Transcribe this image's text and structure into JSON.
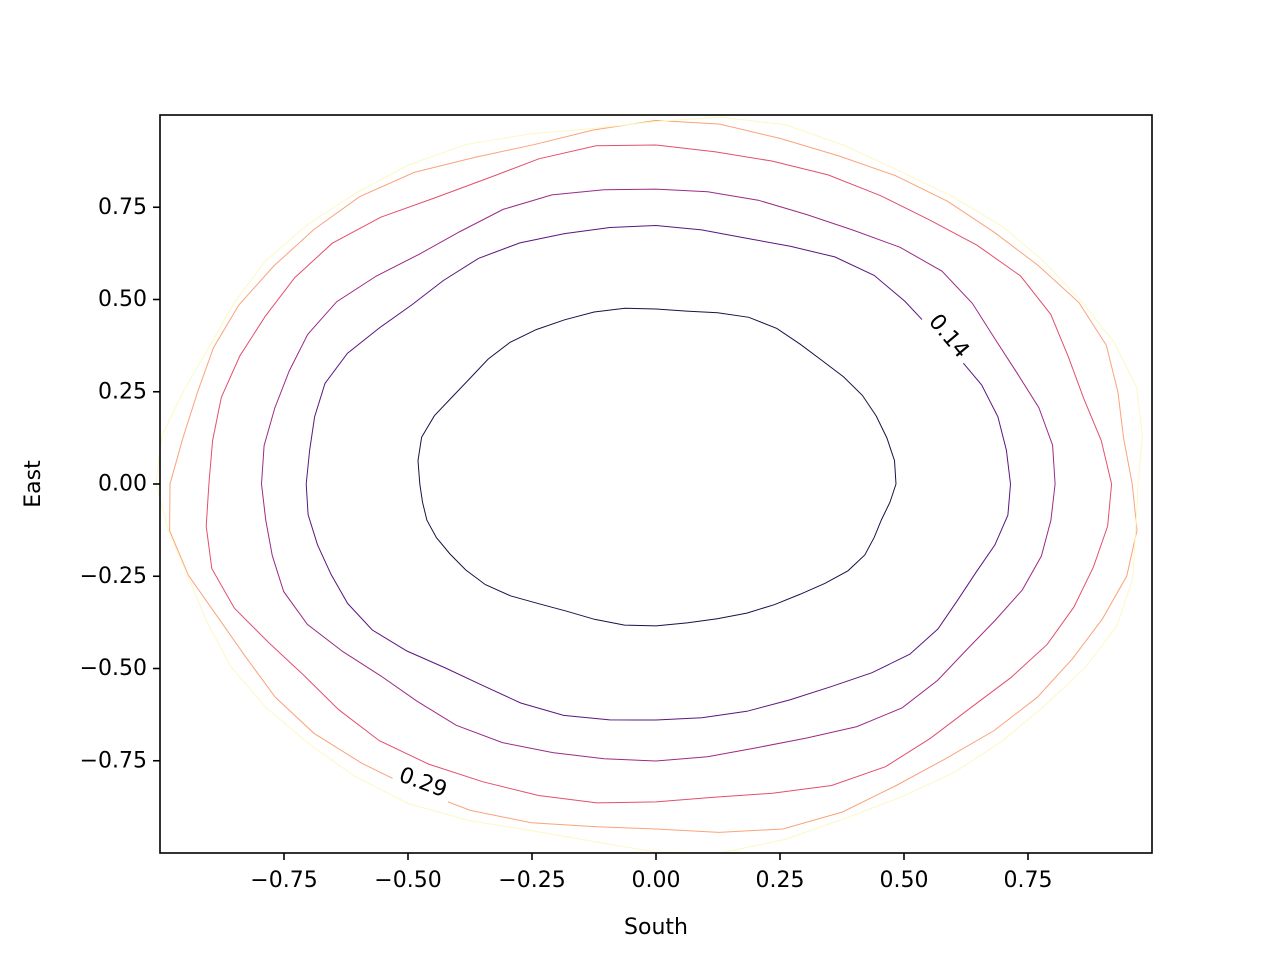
{
  "chart_data": {
    "type": "contour",
    "title": "",
    "xlabel": "South",
    "ylabel": "East",
    "xlim": [
      -1.0,
      1.0
    ],
    "ylim": [
      -1.0,
      1.0
    ],
    "grid": false,
    "legend": "none",
    "x_ticks": [
      {
        "value": -0.75,
        "label": "−0.75"
      },
      {
        "value": -0.5,
        "label": "−0.50"
      },
      {
        "value": -0.25,
        "label": "−0.25"
      },
      {
        "value": 0.0,
        "label": "0.00"
      },
      {
        "value": 0.25,
        "label": "0.25"
      },
      {
        "value": 0.5,
        "label": "0.50"
      },
      {
        "value": 0.75,
        "label": "0.75"
      }
    ],
    "y_ticks": [
      {
        "value": 0.75,
        "label": "0.75"
      },
      {
        "value": 0.5,
        "label": "0.50"
      },
      {
        "value": 0.25,
        "label": "0.25"
      },
      {
        "value": 0.0,
        "label": "0.00"
      },
      {
        "value": -0.25,
        "label": "−0.25"
      },
      {
        "value": -0.5,
        "label": "−0.50"
      },
      {
        "value": -0.75,
        "label": "−0.75"
      }
    ],
    "contours": [
      {
        "color": "#1c1046",
        "rx": 0.48,
        "ry_top": 0.48,
        "ry_bottom": 0.38
      },
      {
        "color": "#5a167e",
        "rx": 0.71,
        "ry_top": 0.7,
        "ry_bottom": 0.64
      },
      {
        "color": "#9b2b86",
        "rx": 0.8,
        "ry_top": 0.8,
        "ry_bottom": 0.75
      },
      {
        "color": "#e3506c",
        "rx": 0.91,
        "ry_top": 0.91,
        "ry_bottom": 0.87
      },
      {
        "color": "#f9a37a",
        "rx": 0.97,
        "ry_top": 0.97,
        "ry_bottom": 0.95
      },
      {
        "color": "#fcf8c4",
        "rx": 0.99,
        "ry_top": 0.99,
        "ry_bottom": 0.99
      }
    ],
    "annotations": [
      {
        "text": "0.14",
        "x": 0.59,
        "y": 0.4,
        "rotation": 50
      },
      {
        "text": "0.29",
        "x": -0.47,
        "y": -0.81,
        "rotation": 20
      }
    ]
  }
}
